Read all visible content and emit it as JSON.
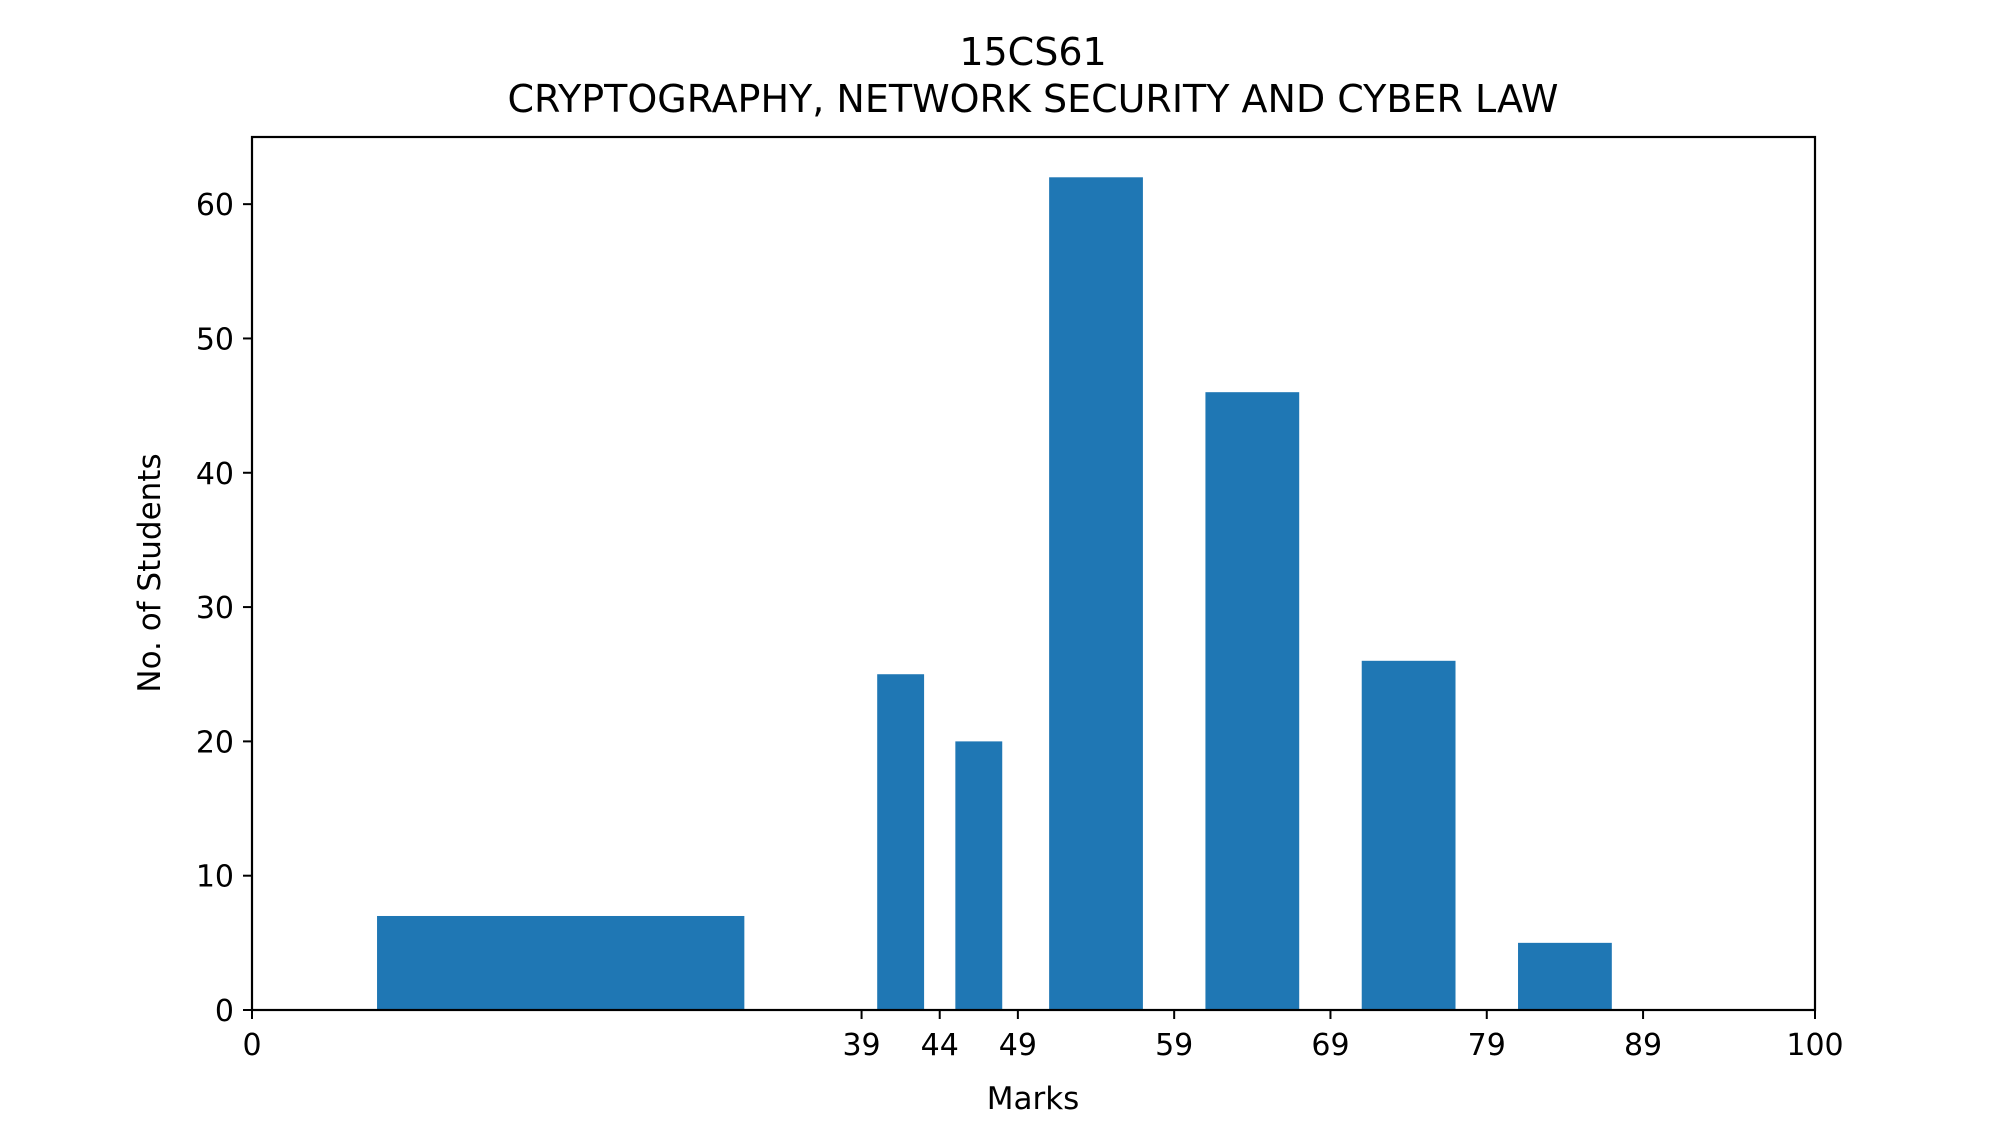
{
  "chart_data": {
    "type": "bar",
    "title": "15CS61",
    "subtitle": "CRYPTOGRAPHY, NETWORK SECURITY AND CYBER LAW",
    "xlabel": "Marks",
    "ylabel": "No. of Students",
    "xlim": [
      0,
      100
    ],
    "ylim": [
      0,
      65
    ],
    "xticks": [
      0,
      39,
      44,
      49,
      59,
      69,
      79,
      89,
      100
    ],
    "yticks": [
      0,
      10,
      20,
      30,
      40,
      50,
      60
    ],
    "bars": [
      {
        "x_start": 8,
        "x_end": 31.5,
        "value": 7
      },
      {
        "x_start": 40,
        "x_end": 43,
        "value": 25
      },
      {
        "x_start": 45,
        "x_end": 48,
        "value": 20
      },
      {
        "x_start": 51,
        "x_end": 57,
        "value": 62
      },
      {
        "x_start": 61,
        "x_end": 67,
        "value": 46
      },
      {
        "x_start": 71,
        "x_end": 77,
        "value": 26
      },
      {
        "x_start": 81,
        "x_end": 87,
        "value": 5
      }
    ],
    "bar_color": "#1f77b4",
    "grid": false,
    "legend": "none"
  }
}
